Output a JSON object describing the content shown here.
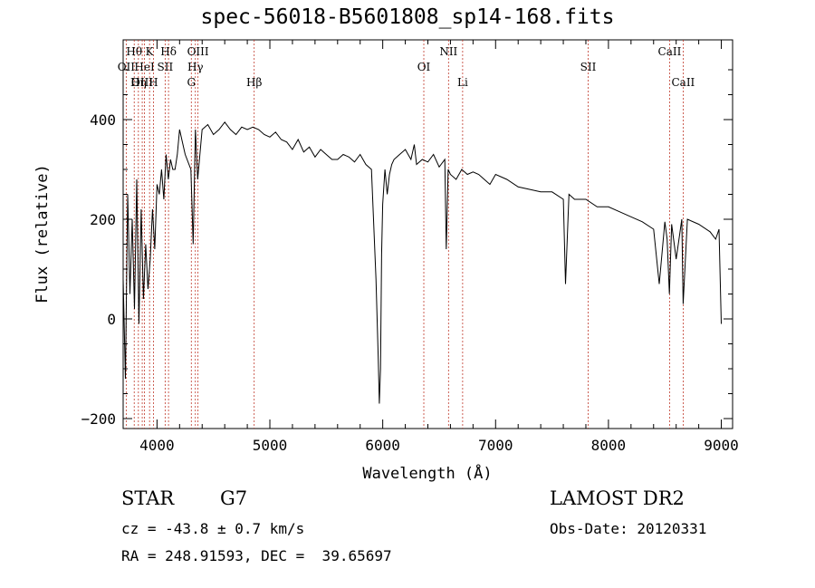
{
  "header": {
    "title": "spec-56018-B5601808_sp14-168.fits"
  },
  "info": {
    "class_label": "STAR",
    "subclass_label": "G7",
    "cz_text": "cz = -43.8 ± 0.7 km/s",
    "coords_text": "RA = 248.91593, DEC =  39.65697",
    "survey": "LAMOST DR2",
    "obs_date": "Obs-Date: 20120331"
  },
  "chart_data": {
    "type": "line",
    "xlabel": "Wavelength (Å)",
    "ylabel": "Flux (relative)",
    "xlim": [
      3700,
      9100
    ],
    "ylim": [
      -220,
      560
    ],
    "x_ticks": [
      4000,
      5000,
      6000,
      7000,
      8000,
      9000
    ],
    "y_ticks": [
      -200,
      0,
      200,
      400
    ],
    "series": [
      {
        "x": [
          3700,
          3720,
          3740,
          3760,
          3780,
          3800,
          3820,
          3840,
          3860,
          3880,
          3900,
          3920,
          3940,
          3960,
          3980,
          4000,
          4020,
          4040,
          4060,
          4080,
          4100,
          4120,
          4140,
          4160,
          4180,
          4200,
          4250,
          4300,
          4320,
          4340,
          4360,
          4400,
          4450,
          4500,
          4550,
          4600,
          4650,
          4700,
          4750,
          4800,
          4850,
          4900,
          4950,
          5000,
          5050,
          5100,
          5150,
          5200,
          5250,
          5300,
          5350,
          5400,
          5450,
          5500,
          5550,
          5600,
          5650,
          5700,
          5750,
          5800,
          5850,
          5900,
          5920,
          5940,
          5960,
          5970,
          5980,
          5990,
          6000,
          6020,
          6040,
          6060,
          6080,
          6100,
          6150,
          6200,
          6250,
          6280,
          6300,
          6350,
          6400,
          6450,
          6500,
          6550,
          6563,
          6580,
          6600,
          6650,
          6700,
          6750,
          6800,
          6850,
          6900,
          6950,
          7000,
          7100,
          7200,
          7300,
          7400,
          7500,
          7600,
          7620,
          7650,
          7700,
          7800,
          7900,
          8000,
          8100,
          8200,
          8300,
          8400,
          8450,
          8500,
          8520,
          8540,
          8560,
          8600,
          8650,
          8662,
          8700,
          8800,
          8900,
          8950,
          8980,
          9000
        ],
        "y": [
          80,
          -120,
          250,
          50,
          200,
          20,
          280,
          -10,
          220,
          40,
          150,
          60,
          120,
          220,
          140,
          270,
          250,
          300,
          240,
          330,
          280,
          320,
          300,
          300,
          330,
          380,
          330,
          300,
          150,
          380,
          280,
          380,
          390,
          370,
          380,
          395,
          380,
          370,
          385,
          380,
          385,
          380,
          370,
          365,
          375,
          360,
          355,
          340,
          360,
          335,
          345,
          325,
          340,
          330,
          320,
          320,
          330,
          325,
          315,
          330,
          310,
          300,
          190,
          80,
          -80,
          -170,
          -100,
          130,
          230,
          300,
          250,
          290,
          310,
          320,
          330,
          340,
          320,
          350,
          310,
          320,
          315,
          330,
          305,
          320,
          140,
          300,
          290,
          280,
          300,
          290,
          295,
          290,
          280,
          270,
          290,
          280,
          265,
          260,
          255,
          255,
          240,
          70,
          250,
          240,
          240,
          225,
          225,
          215,
          205,
          195,
          180,
          70,
          195,
          160,
          50,
          190,
          120,
          200,
          30,
          200,
          190,
          175,
          160,
          180,
          -10
        ]
      }
    ],
    "line_markers": [
      {
        "label": "OII",
        "x": 3727,
        "row": 1
      },
      {
        "label": "Hθ",
        "x": 3798,
        "row": 0
      },
      {
        "label": "Hη",
        "x": 3835,
        "row": 2
      },
      {
        "label": "OIII",
        "x": 3869,
        "row": 2
      },
      {
        "label": "HeI",
        "x": 3889,
        "row": 1
      },
      {
        "label": "K",
        "x": 3934,
        "row": 0
      },
      {
        "label": "H",
        "x": 3968,
        "row": 2
      },
      {
        "label": "SII",
        "x": 4072,
        "row": 1
      },
      {
        "label": "Hδ",
        "x": 4102,
        "row": 0
      },
      {
        "label": "G",
        "x": 4304,
        "row": 2
      },
      {
        "label": "Hγ",
        "x": 4340,
        "row": 1
      },
      {
        "label": "OIII",
        "x": 4363,
        "row": 0
      },
      {
        "label": "Hβ",
        "x": 4861,
        "row": 2
      },
      {
        "label": "OI",
        "x": 6364,
        "row": 1
      },
      {
        "label": "NII",
        "x": 6583,
        "row": 0
      },
      {
        "label": "Li",
        "x": 6708,
        "row": 2
      },
      {
        "label": "SII",
        "x": 7820,
        "row": 1
      },
      {
        "label": "CaII",
        "x": 8542,
        "row": 0
      },
      {
        "label": "CaII",
        "x": 8662,
        "row": 2
      }
    ]
  }
}
